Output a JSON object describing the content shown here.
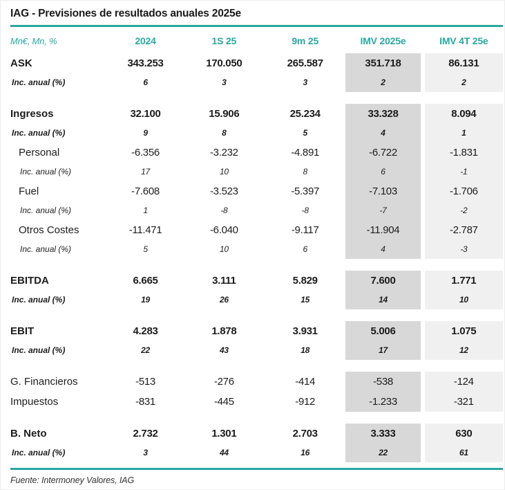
{
  "title": "IAG - Previsiones de resultados anuales 2025e",
  "footer": "Fuente: Intermoney Valores, IAG",
  "colors": {
    "accent_teal": "#2aa7a1",
    "shade_imv_2025e": "#d8d8d8",
    "shade_imv_4t25e": "#f0f0f0",
    "text": "#1c1c1c"
  },
  "table": {
    "unit_label": "Mn€, Mn, %",
    "columns": [
      "2024",
      "1S 25",
      "9m 25",
      "IMV 2025e",
      "IMV 4T 25e"
    ],
    "sections": [
      {
        "rows": [
          {
            "label": "ASK",
            "style": "main",
            "values": [
              "343.253",
              "170.050",
              "265.587",
              "351.718",
              "86.131"
            ]
          },
          {
            "label": "Inc. anual (%)",
            "style": "incmain",
            "values": [
              "6",
              "3",
              "3",
              "2",
              "2"
            ]
          }
        ]
      },
      {
        "rows": [
          {
            "label": "Ingresos",
            "style": "main",
            "values": [
              "32.100",
              "15.906",
              "25.234",
              "33.328",
              "8.094"
            ]
          },
          {
            "label": "Inc. anual (%)",
            "style": "incmain",
            "values": [
              "9",
              "8",
              "5",
              "4",
              "1"
            ]
          },
          {
            "label": "Personal",
            "style": "sub",
            "values": [
              "-6.356",
              "-3.232",
              "-4.891",
              "-6.722",
              "-1.831"
            ]
          },
          {
            "label": "Inc. anual (%)",
            "style": "incsub",
            "values": [
              "17",
              "10",
              "8",
              "6",
              "-1"
            ]
          },
          {
            "label": "Fuel",
            "style": "sub",
            "values": [
              "-7.608",
              "-3.523",
              "-5.397",
              "-7.103",
              "-1.706"
            ]
          },
          {
            "label": "Inc. anual (%)",
            "style": "incsub",
            "values": [
              "1",
              "-8",
              "-8",
              "-7",
              "-2"
            ]
          },
          {
            "label": "Otros Costes",
            "style": "sub",
            "values": [
              "-11.471",
              "-6.040",
              "-9.117",
              "-11.904",
              "-2.787"
            ]
          },
          {
            "label": "Inc. anual (%)",
            "style": "incsub",
            "values": [
              "5",
              "10",
              "6",
              "4",
              "-3"
            ]
          }
        ]
      },
      {
        "rows": [
          {
            "label": "EBITDA",
            "style": "main",
            "values": [
              "6.665",
              "3.111",
              "5.829",
              "7.600",
              "1.771"
            ]
          },
          {
            "label": "Inc. anual (%)",
            "style": "incmain",
            "values": [
              "19",
              "26",
              "15",
              "14",
              "10"
            ]
          }
        ]
      },
      {
        "rows": [
          {
            "label": "EBIT",
            "style": "main",
            "values": [
              "4.283",
              "1.878",
              "3.931",
              "5.006",
              "1.075"
            ]
          },
          {
            "label": "Inc. anual (%)",
            "style": "incmain",
            "values": [
              "22",
              "43",
              "18",
              "17",
              "12"
            ]
          }
        ]
      },
      {
        "rows": [
          {
            "label": "G. Financieros",
            "style": "plain",
            "values": [
              "-513",
              "-276",
              "-414",
              "-538",
              "-124"
            ]
          },
          {
            "label": "Impuestos",
            "style": "plain",
            "values": [
              "-831",
              "-445",
              "-912",
              "-1.233",
              "-321"
            ]
          }
        ]
      },
      {
        "rows": [
          {
            "label": "B. Neto",
            "style": "main",
            "values": [
              "2.732",
              "1.301",
              "2.703",
              "3.333",
              "630"
            ]
          },
          {
            "label": "Inc. anual (%)",
            "style": "incmain",
            "values": [
              "3",
              "44",
              "16",
              "22",
              "61"
            ]
          }
        ]
      }
    ]
  }
}
